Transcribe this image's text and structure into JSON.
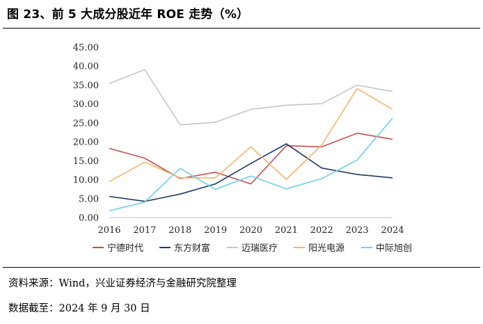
{
  "figure": {
    "title": "图 23、前 5 大成分股近年 ROE 走势（%）",
    "source": "资料来源：Wind，兴业证券经济与金融研究院整理",
    "date_note": "数据截至：2024 年 9 月 30 日"
  },
  "chart_data": {
    "type": "line",
    "title": "",
    "xlabel": "",
    "ylabel": "",
    "x": [
      "2016",
      "2017",
      "2018",
      "2019",
      "2020",
      "2021",
      "2022",
      "2023",
      "2024"
    ],
    "ylim": [
      0,
      45
    ],
    "yticks": [
      "0.00",
      "5.00",
      "10.00",
      "15.00",
      "20.00",
      "25.00",
      "30.00",
      "35.00",
      "40.00",
      "45.00"
    ],
    "grid": false,
    "legend_position": "bottom",
    "series": [
      {
        "name": "宁德时代",
        "color": "#c0504d",
        "values": [
          18.3,
          15.7,
          10.3,
          12.0,
          8.9,
          19.0,
          18.7,
          22.3,
          20.7
        ]
      },
      {
        "name": "东方财富",
        "color": "#1f3864",
        "values": [
          5.6,
          4.3,
          6.2,
          8.9,
          14.3,
          19.5,
          13.1,
          11.4,
          10.5
        ]
      },
      {
        "name": "迈瑞医疗",
        "color": "#c6c6c6",
        "values": [
          35.4,
          39.1,
          24.5,
          25.2,
          28.6,
          29.7,
          30.1,
          35.0,
          33.3
        ]
      },
      {
        "name": "阳光电源",
        "color": "#f2b56b",
        "values": [
          9.5,
          14.7,
          10.5,
          10.5,
          18.7,
          10.1,
          19.2,
          34.1,
          28.6
        ]
      },
      {
        "name": "中际旭创",
        "color": "#6fcfe6",
        "values": [
          1.8,
          4.1,
          13.0,
          7.5,
          11.0,
          7.6,
          10.3,
          15.2,
          26.3
        ]
      }
    ]
  }
}
